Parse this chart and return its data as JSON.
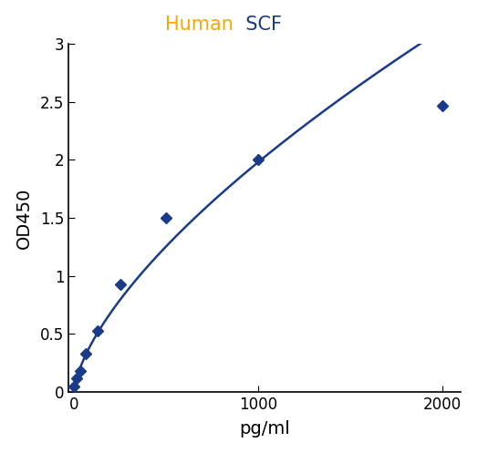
{
  "title_human": "Human",
  "title_scf": "  SCF",
  "title_color_human": "#FFA500",
  "title_color_scf": "#1a3a8a",
  "xlabel": "pg/ml",
  "ylabel": "OD450",
  "x_data": [
    0,
    15.6,
    31.2,
    62.5,
    125,
    250,
    500,
    1000,
    2000
  ],
  "y_data": [
    0.05,
    0.12,
    0.18,
    0.33,
    0.53,
    0.93,
    1.5,
    2.0,
    2.47
  ],
  "xlim": [
    -30,
    2100
  ],
  "ylim": [
    0,
    3
  ],
  "xticks": [
    0,
    1000,
    2000
  ],
  "yticks": [
    0,
    0.5,
    1.0,
    1.5,
    2.0,
    2.5,
    3.0
  ],
  "ytick_labels": [
    "0",
    "0.5",
    "1",
    "1.5",
    "2",
    "2.5",
    "3"
  ],
  "line_color": "#1a3a8a",
  "marker_color": "#1a3a8a",
  "marker_style": "D",
  "marker_size": 6,
  "line_width": 1.8,
  "bg_color": "#ffffff",
  "tick_label_fontsize": 12,
  "axis_label_fontsize": 14,
  "title_fontsize": 15
}
